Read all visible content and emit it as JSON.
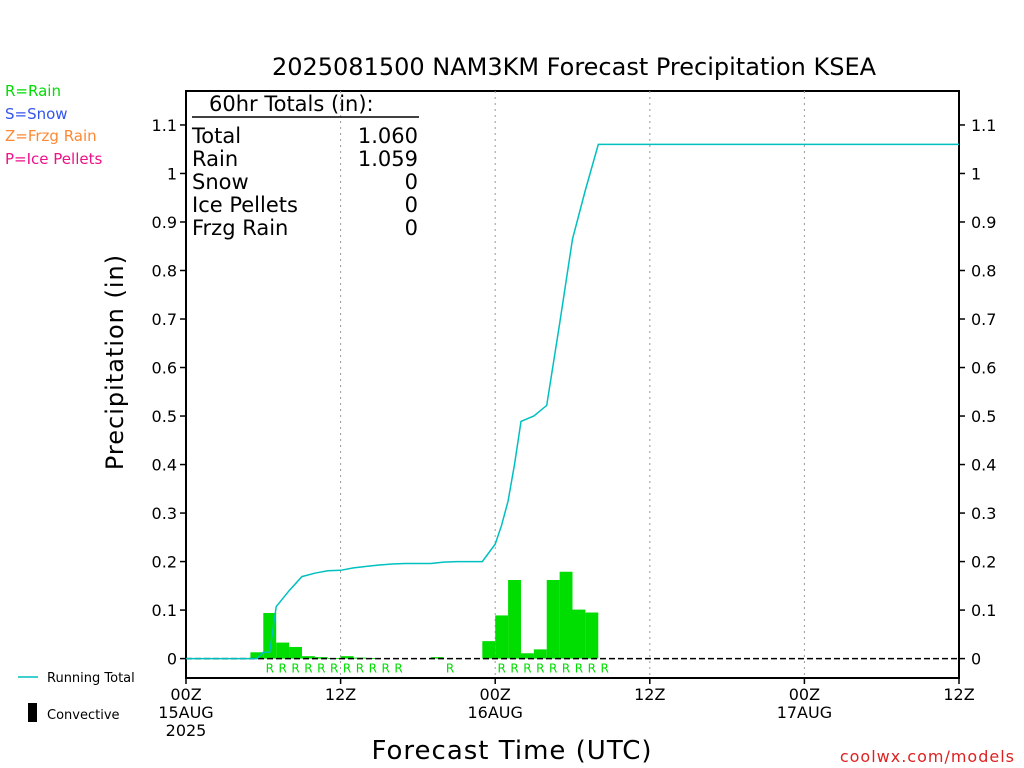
{
  "chart_data": {
    "type": "bar",
    "title": "2025081500 NAM3KM Forecast Precipitation KSEA",
    "xlabel": "Forecast Time (UTC)",
    "ylabel": "Precipitation (in)",
    "ylim": [
      -0.04,
      1.17
    ],
    "xlim_hours": [
      0,
      60
    ],
    "y_ticks": [
      "0",
      "0.1",
      "0.2",
      "0.3",
      "0.4",
      "0.5",
      "0.6",
      "0.7",
      "0.8",
      "0.9",
      "1",
      "1.1"
    ],
    "x_ticks": [
      {
        "hour": 0,
        "lines": [
          "00Z",
          "15AUG",
          "2025"
        ]
      },
      {
        "hour": 12,
        "lines": [
          "12Z"
        ]
      },
      {
        "hour": 24,
        "lines": [
          "00Z",
          "16AUG"
        ]
      },
      {
        "hour": 36,
        "lines": [
          "12Z"
        ]
      },
      {
        "hour": 48,
        "lines": [
          "00Z",
          "17AUG"
        ]
      },
      {
        "hour": 60,
        "lines": [
          "12Z"
        ]
      }
    ],
    "grid": "vertical dotted at 12Z and 00Z",
    "hourly_precip": {
      "hours": [
        6,
        7,
        8,
        9,
        10,
        11,
        12,
        13,
        14,
        15,
        16,
        17,
        18,
        19,
        20,
        21,
        22,
        23,
        24,
        25,
        26,
        27,
        28,
        29,
        30,
        31,
        32,
        33
      ],
      "values": [
        0.013,
        0.094,
        0.033,
        0.024,
        0.005,
        0.003,
        0.001,
        0.005,
        0.002,
        0.001,
        0.0,
        0.0,
        0.0,
        0.0,
        0.003,
        0.0,
        0.0,
        0.0,
        0.036,
        0.089,
        0.162,
        0.011,
        0.019,
        0.162,
        0.179,
        0.101,
        0.095,
        0.0
      ],
      "color": "#00dd00"
    },
    "precip_type_marks": {
      "hours": [
        7,
        8,
        9,
        10,
        11,
        12,
        13,
        14,
        15,
        16,
        17,
        21,
        25,
        26,
        27,
        28,
        29,
        30,
        31,
        32,
        33
      ],
      "letter": "R",
      "color": "#00dd00"
    },
    "running_total": {
      "name": "Running Total",
      "color": "#00c0c0",
      "x": [
        0,
        5.5,
        6,
        6.5,
        7,
        8,
        9,
        10,
        11,
        12,
        13,
        14,
        15,
        16,
        17,
        18,
        19,
        20,
        21,
        22,
        23,
        24,
        24.5,
        25,
        25.5,
        26,
        27,
        28,
        29,
        30,
        31,
        32,
        33,
        60
      ],
      "y": [
        0,
        0,
        0.013,
        0.013,
        0.107,
        0.14,
        0.169,
        0.176,
        0.181,
        0.182,
        0.187,
        0.19,
        0.193,
        0.195,
        0.196,
        0.196,
        0.196,
        0.199,
        0.2,
        0.2,
        0.2,
        0.236,
        0.275,
        0.325,
        0.4,
        0.489,
        0.5,
        0.522,
        0.69,
        0.865,
        0.966,
        1.06,
        1.06,
        1.06
      ]
    }
  },
  "totals_box": {
    "heading": "60hr Totals (in):",
    "rows": [
      {
        "label": "Total",
        "value": "1.060"
      },
      {
        "label": "Rain",
        "value": "1.059"
      },
      {
        "label": "Snow",
        "value": "0"
      },
      {
        "label": "Ice Pellets",
        "value": "0"
      },
      {
        "label": "Frzg Rain",
        "value": "0"
      }
    ]
  },
  "type_legend": [
    {
      "text": "R=Rain",
      "color": "#00dd00"
    },
    {
      "text": "S=Snow",
      "color": "#3355ee"
    },
    {
      "text": "Z=Frzg Rain",
      "color": "#ff8833"
    },
    {
      "text": "P=Ice Pellets",
      "color": "#ee1188"
    }
  ],
  "series_legend": {
    "running_total_label": "Running Total",
    "running_total_color": "#00c0c0",
    "convective_label": "Convective",
    "convective_color": "#000000"
  },
  "watermark": {
    "text": "coolwx.com/models",
    "color": "#dd2222"
  }
}
